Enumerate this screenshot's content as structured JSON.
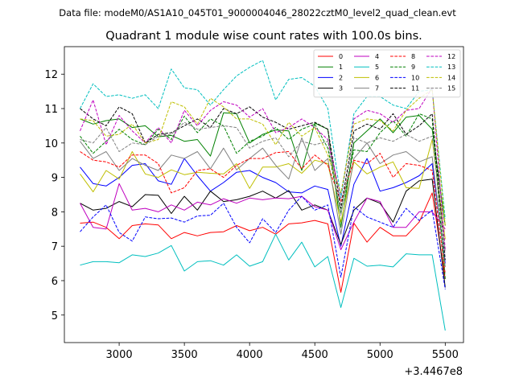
{
  "chart_data": {
    "type": "line",
    "suptitle": "Data file: modeM0/AS1A10_045T01_9000004046_28022cztM0_level2_quad_clean.evt",
    "title": "Quadrant 1 module wise count rates with 100.0s bins.",
    "xlabel": "",
    "ylabel": "",
    "x_offset_label": "+3.4467e8",
    "xlim": [
      2580,
      5640
    ],
    "ylim": [
      4.2,
      12.8
    ],
    "xticks": [
      3000,
      3500,
      4000,
      4500,
      5000,
      5500
    ],
    "yticks": [
      5,
      6,
      7,
      8,
      9,
      10,
      11,
      12
    ],
    "legend_position": "top-right",
    "x": [
      2700,
      2800,
      2900,
      3000,
      3100,
      3200,
      3300,
      3400,
      3500,
      3600,
      3700,
      3800,
      3900,
      4000,
      4100,
      4200,
      4300,
      4400,
      4500,
      4600,
      4700,
      4800,
      4900,
      5000,
      5100,
      5200,
      5300,
      5400,
      5500
    ],
    "series": [
      {
        "name": "0",
        "color": "#ff0000",
        "dash": "solid",
        "values": [
          7.67,
          7.7,
          7.55,
          7.22,
          7.6,
          7.65,
          7.62,
          7.22,
          7.4,
          7.3,
          7.4,
          7.42,
          7.6,
          7.45,
          7.55,
          7.35,
          7.65,
          7.68,
          7.75,
          7.65,
          5.66,
          7.67,
          7.12,
          7.55,
          7.3,
          7.3,
          7.7,
          8.55,
          6.05
        ]
      },
      {
        "name": "1",
        "color": "#008000",
        "dash": "solid",
        "values": [
          10.7,
          10.55,
          10.65,
          10.7,
          10.45,
          10.5,
          10.18,
          10.22,
          10.05,
          10.1,
          9.62,
          10.88,
          10.85,
          10.0,
          10.25,
          10.38,
          10.35,
          9.2,
          10.58,
          10.4,
          7.55,
          10.0,
          10.35,
          10.7,
          10.3,
          10.75,
          10.8,
          10.4,
          7.6
        ]
      },
      {
        "name": "2",
        "color": "#0000ff",
        "dash": "solid",
        "values": [
          9.3,
          8.82,
          8.75,
          9.0,
          9.35,
          9.4,
          8.9,
          8.8,
          9.55,
          9.05,
          8.6,
          8.85,
          9.15,
          9.2,
          9.0,
          8.85,
          8.58,
          8.55,
          8.75,
          8.65,
          7.0,
          8.8,
          9.55,
          8.6,
          8.7,
          8.85,
          9.05,
          9.4,
          6.5
        ]
      },
      {
        "name": "3",
        "color": "#000000",
        "dash": "solid",
        "values": [
          8.25,
          8.05,
          8.1,
          8.3,
          8.15,
          8.5,
          8.48,
          7.95,
          8.45,
          8.05,
          8.6,
          8.3,
          8.35,
          8.45,
          8.6,
          8.4,
          8.62,
          8.05,
          8.2,
          8.05,
          7.05,
          8.05,
          8.4,
          8.25,
          7.7,
          8.6,
          8.9,
          8.95,
          5.8
        ]
      },
      {
        "name": "4",
        "color": "#bf00bf",
        "dash": "solid",
        "values": [
          8.25,
          7.55,
          7.5,
          8.82,
          8.05,
          8.1,
          8.0,
          8.2,
          8.05,
          8.28,
          8.2,
          8.38,
          8.25,
          8.4,
          8.35,
          8.4,
          8.38,
          8.45,
          8.15,
          8.05,
          6.9,
          7.7,
          8.4,
          8.3,
          7.55,
          7.55,
          8.0,
          8.0,
          7.5
        ]
      },
      {
        "name": "5",
        "color": "#00bfbf",
        "dash": "solid",
        "values": [
          6.45,
          6.55,
          6.55,
          6.52,
          6.75,
          6.7,
          6.8,
          7.02,
          6.28,
          6.55,
          6.58,
          6.45,
          6.75,
          6.42,
          6.55,
          7.35,
          6.6,
          7.12,
          6.4,
          6.7,
          5.22,
          6.65,
          6.42,
          6.45,
          6.4,
          6.78,
          6.75,
          6.75,
          4.55
        ]
      },
      {
        "name": "6",
        "color": "#bfbf00",
        "dash": "solid",
        "values": [
          9.1,
          8.58,
          9.2,
          8.95,
          9.75,
          9.1,
          9.0,
          9.22,
          9.08,
          9.15,
          9.12,
          9.1,
          9.4,
          8.68,
          9.3,
          9.3,
          9.4,
          9.12,
          9.5,
          9.4,
          7.7,
          9.45,
          9.1,
          9.3,
          9.45,
          8.7,
          8.68,
          10.1,
          7.2
        ]
      },
      {
        "name": "7",
        "color": "#808080",
        "dash": "solid",
        "values": [
          10.05,
          9.55,
          9.75,
          9.2,
          9.55,
          9.35,
          9.2,
          9.65,
          9.55,
          9.75,
          9.25,
          9.85,
          9.22,
          9.55,
          9.85,
          9.35,
          8.95,
          10.15,
          9.2,
          9.55,
          7.35,
          9.55,
          10.0,
          9.4,
          9.65,
          9.75,
          9.45,
          9.6,
          6.4
        ]
      },
      {
        "name": "8",
        "color": "#ff0000",
        "dash": "dashed",
        "values": [
          9.75,
          9.5,
          9.45,
          9.3,
          9.65,
          9.65,
          9.4,
          8.55,
          8.7,
          9.2,
          9.25,
          9.0,
          9.35,
          9.55,
          9.55,
          9.72,
          9.75,
          9.25,
          9.65,
          9.35,
          8.3,
          9.5,
          9.4,
          9.7,
          9.0,
          9.4,
          9.35,
          9.2,
          6.2
        ]
      },
      {
        "name": "9",
        "color": "#008000",
        "dash": "dashed",
        "values": [
          10.2,
          9.7,
          10.05,
          10.4,
          10.1,
          9.95,
          10.4,
          10.1,
          10.78,
          10.3,
          10.7,
          10.5,
          9.7,
          10.05,
          10.2,
          10.45,
          10.1,
          10.4,
          10.55,
          9.85,
          7.95,
          9.8,
          9.75,
          10.3,
          10.65,
          10.2,
          10.85,
          10.7,
          6.05
        ]
      },
      {
        "name": "10",
        "color": "#0000ff",
        "dash": "dashed",
        "values": [
          7.42,
          7.85,
          8.2,
          7.4,
          7.15,
          7.85,
          7.8,
          7.82,
          7.7,
          7.88,
          7.9,
          8.25,
          7.55,
          7.1,
          7.8,
          7.4,
          8.05,
          8.45,
          8.05,
          8.2,
          6.1,
          8.15,
          7.85,
          7.7,
          7.55,
          8.1,
          7.75,
          8.05,
          5.75
        ]
      },
      {
        "name": "11",
        "color": "#000000",
        "dash": "dashed",
        "values": [
          11.0,
          10.7,
          10.5,
          11.05,
          10.85,
          10.0,
          10.25,
          10.3,
          10.5,
          10.7,
          10.45,
          11.0,
          10.85,
          11.05,
          10.75,
          10.6,
          10.4,
          10.5,
          10.6,
          10.4,
          8.1,
          10.35,
          10.55,
          10.4,
          10.85,
          10.25,
          10.5,
          10.85,
          6.6
        ]
      },
      {
        "name": "12",
        "color": "#bf00bf",
        "dash": "dashed",
        "values": [
          10.35,
          11.25,
          9.95,
          10.8,
          10.35,
          10.0,
          10.45,
          10.0,
          10.95,
          10.5,
          10.95,
          11.2,
          11.1,
          10.75,
          11.0,
          10.3,
          10.45,
          10.7,
          10.45,
          10.1,
          8.4,
          10.7,
          10.95,
          10.85,
          10.6,
          10.95,
          11.0,
          11.6,
          6.9
        ]
      },
      {
        "name": "13",
        "color": "#00bfbf",
        "dash": "dashed",
        "values": [
          11.0,
          11.72,
          11.35,
          11.4,
          11.3,
          11.4,
          11.0,
          12.15,
          11.6,
          11.55,
          11.1,
          11.55,
          11.95,
          12.2,
          12.4,
          11.25,
          11.85,
          11.9,
          11.65,
          11.0,
          8.4,
          10.85,
          11.35,
          11.35,
          11.1,
          11.0,
          11.5,
          11.55,
          7.8
        ]
      },
      {
        "name": "14",
        "color": "#bfbf00",
        "dash": "dashed",
        "values": [
          10.7,
          10.65,
          10.2,
          10.25,
          10.55,
          10.0,
          10.1,
          11.2,
          11.05,
          10.55,
          11.3,
          11.05,
          10.7,
          10.7,
          10.55,
          9.95,
          10.6,
          10.2,
          10.45,
          9.65,
          8.55,
          10.55,
          10.7,
          10.65,
          10.35,
          10.95,
          11.3,
          11.55,
          7.6
        ]
      },
      {
        "name": "15",
        "color": "#808080",
        "dash": "dashed",
        "values": [
          10.1,
          10.0,
          10.45,
          9.75,
          10.0,
          9.95,
          10.2,
          10.25,
          10.6,
          10.4,
          10.45,
          10.5,
          10.45,
          9.85,
          10.05,
          10.15,
          9.6,
          10.05,
          9.95,
          10.05,
          7.9,
          10.15,
          10.0,
          10.15,
          10.05,
          10.25,
          10.05,
          10.2,
          6.8
        ]
      }
    ]
  }
}
